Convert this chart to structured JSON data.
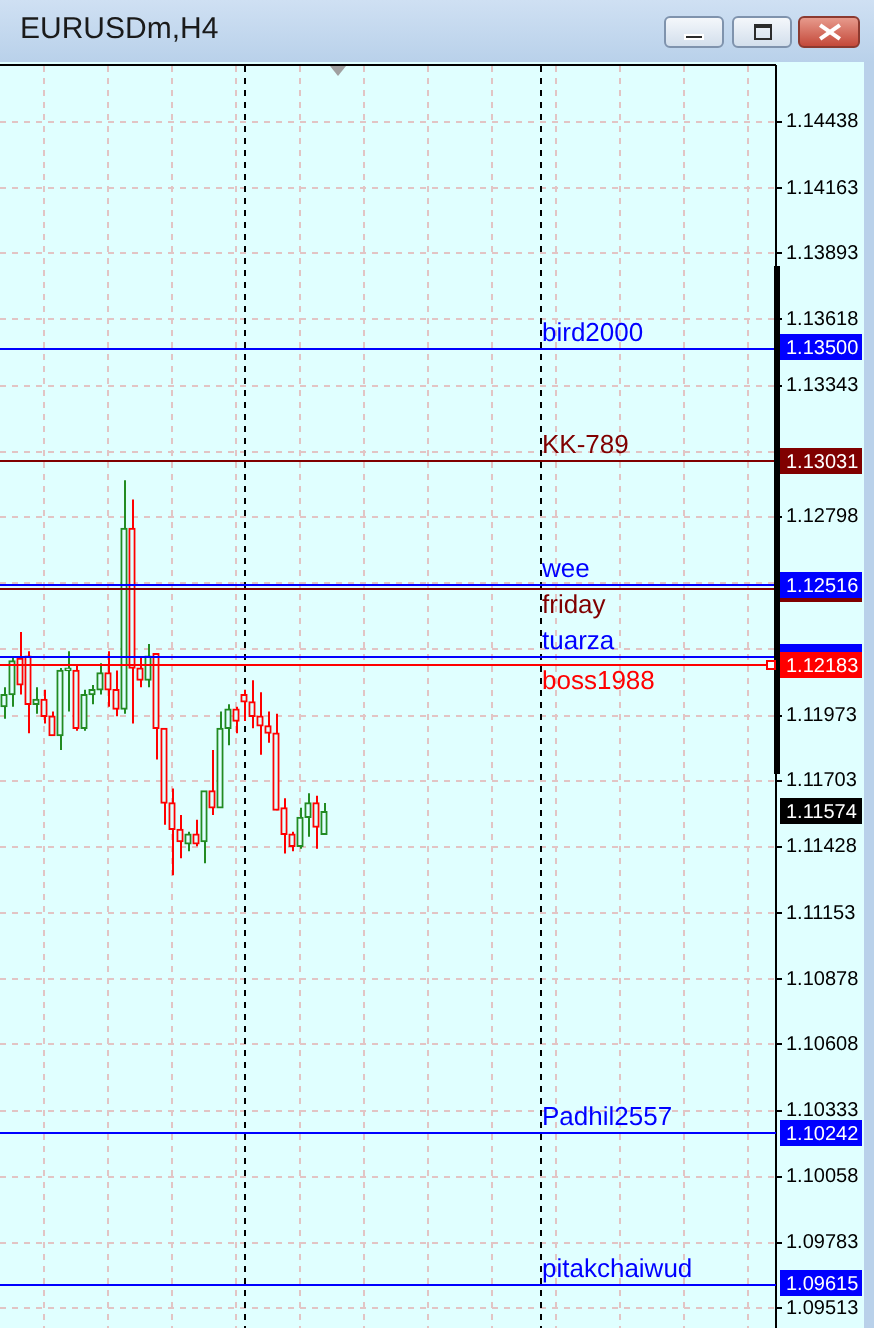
{
  "chart_data": {
    "type": "candlestick",
    "title": "EURUSDm,H4",
    "categories": [
      null,
      null,
      null,
      null,
      null,
      null,
      null,
      null,
      null,
      null,
      null,
      null,
      null,
      null,
      null,
      null,
      null,
      null,
      null,
      null,
      null,
      null,
      null,
      null,
      null,
      null,
      null,
      null,
      null,
      null,
      null,
      null,
      null,
      null,
      null,
      null,
      null,
      null,
      null,
      null,
      null,
      null,
      null,
      null,
      null,
      null,
      null,
      null,
      null,
      null,
      null,
      null,
      null,
      null,
      null,
      null,
      null,
      null,
      null,
      null,
      null,
      null,
      null,
      null,
      null,
      null,
      null,
      null,
      null,
      null,
      null,
      null,
      null,
      null,
      null,
      null,
      null,
      null,
      null,
      null,
      null,
      null,
      null,
      null,
      null,
      null,
      null,
      null,
      null,
      null,
      null,
      null,
      null,
      null,
      null,
      null,
      null
    ],
    "ohlc": [
      [
        1.1201,
        1.1209,
        1.1196,
        1.1206
      ],
      [
        1.1206,
        1.1222,
        1.1201,
        1.122
      ],
      [
        1.1221,
        1.1232,
        1.1206,
        1.121
      ],
      [
        1.1222,
        1.1224,
        1.119,
        1.1202
      ],
      [
        1.1202,
        1.1209,
        1.1198,
        1.1204
      ],
      [
        1.1204,
        1.1208,
        1.1194,
        1.1197
      ],
      [
        1.1197,
        1.1199,
        1.1189,
        1.1189
      ],
      [
        1.1189,
        1.1217,
        1.1183,
        1.1216
      ],
      [
        1.1216,
        1.1224,
        1.1199,
        1.1217
      ],
      [
        1.1216,
        1.1218,
        1.1191,
        1.1192
      ],
      [
        1.1192,
        1.1208,
        1.1191,
        1.1206
      ],
      [
        1.1206,
        1.121,
        1.1202,
        1.1208
      ],
      [
        1.1208,
        1.1219,
        1.1206,
        1.1215
      ],
      [
        1.1215,
        1.1224,
        1.1201,
        1.1208
      ],
      [
        1.1208,
        1.1216,
        1.1197,
        1.12
      ],
      [
        1.12,
        1.1295,
        1.1198,
        1.1275
      ],
      [
        1.1275,
        1.1287,
        1.1194,
        1.1217
      ],
      [
        1.1217,
        1.1222,
        1.1209,
        1.1212
      ],
      [
        1.1212,
        1.1227,
        1.1209,
        1.1222
      ],
      [
        1.1223,
        1.1223,
        1.1179,
        1.1192
      ],
      [
        1.1192,
        1.1192,
        1.1152,
        1.1161
      ],
      [
        1.1161,
        1.1167,
        1.1131,
        1.115
      ],
      [
        1.115,
        1.1156,
        1.1138,
        1.1145
      ],
      [
        1.1144,
        1.1149,
        1.1141,
        1.1148
      ],
      [
        1.1148,
        1.1154,
        1.1143,
        1.1144
      ],
      [
        1.1145,
        1.1166,
        1.1136,
        1.1166
      ],
      [
        1.1166,
        1.1183,
        1.1156,
        1.1159
      ],
      [
        1.1159,
        1.1199,
        1.1159,
        1.1192
      ],
      [
        1.1192,
        1.1202,
        1.1185,
        1.12
      ],
      [
        1.12,
        1.1201,
        1.119,
        1.1195
      ],
      [
        1.1206,
        1.1208,
        1.1195,
        1.1203
      ],
      [
        1.1203,
        1.1212,
        1.1192,
        1.1197
      ],
      [
        1.1197,
        1.1207,
        1.1181,
        1.1193
      ],
      [
        1.1193,
        1.1199,
        1.1186,
        1.119
      ],
      [
        1.119,
        1.1198,
        1.1158,
        1.1158
      ],
      [
        1.1159,
        1.1163,
        1.114,
        1.1148
      ],
      [
        1.1148,
        1.1149,
        1.1141,
        1.1143
      ],
      [
        1.1143,
        1.1159,
        1.1142,
        1.1155
      ],
      [
        1.1155,
        1.1165,
        1.1147,
        1.1161
      ],
      [
        1.1161,
        1.1164,
        1.1142,
        1.1151
      ],
      [
        1.1148,
        1.1161,
        1.1148,
        1.11574
      ],
      null,
      null,
      null,
      null,
      null,
      null,
      null,
      null,
      null,
      null,
      null,
      null,
      null,
      null,
      null,
      null,
      null,
      null,
      null,
      null,
      null,
      null,
      null,
      null,
      null,
      null,
      null,
      null,
      null,
      null,
      null,
      null,
      null,
      null,
      null,
      null,
      null,
      null,
      null,
      null,
      null,
      null,
      null,
      null,
      null,
      null,
      null,
      null,
      null,
      null,
      null,
      null,
      null,
      null,
      null,
      null
    ],
    "colors": [
      "#228b22",
      "#228b22",
      "#ff0000",
      "#ff0000",
      "#228b22",
      "#ff0000",
      "#ff0000",
      "#228b22",
      "#228b22",
      "#ff0000",
      "#228b22",
      "#228b22",
      "#228b22",
      "#ff0000",
      "#ff0000",
      "#228b22",
      "#ff0000",
      "#ff0000",
      "#228b22",
      "#ff0000",
      "#ff0000",
      "#ff0000",
      "#ff0000",
      "#228b22",
      "#ff0000",
      "#228b22",
      "#ff0000",
      "#228b22",
      "#228b22",
      "#ff0000",
      "#ff0000",
      "#ff0000",
      "#ff0000",
      "#ff0000",
      "#ff0000",
      "#ff0000",
      "#ff0000",
      "#228b22",
      "#228b22",
      "#ff0000",
      "#228b22",
      null,
      null,
      null,
      null,
      null,
      null,
      null,
      null,
      null,
      null,
      null,
      null,
      null,
      null,
      null,
      null,
      null,
      null,
      null,
      null,
      null,
      null,
      null,
      null,
      null,
      null,
      null,
      null,
      null,
      null,
      null,
      null,
      null,
      null,
      null,
      null,
      null,
      null,
      null,
      null,
      null,
      null,
      null,
      null,
      null,
      null,
      null,
      null,
      null,
      null,
      null,
      null,
      null,
      null,
      null,
      null
    ],
    "ylim": [
      1.0943,
      1.1467
    ],
    "yticks": [
      1.14438,
      1.14163,
      1.13893,
      1.13618,
      1.13343,
      {
        "value": 1.13068,
        "label": null
      },
      1.12798,
      {
        "value": 1.12523,
        "label": null
      },
      {
        "value": 1.12248,
        "label": null
      },
      1.11973,
      1.11703,
      1.11428,
      1.11153,
      1.10878,
      1.10608,
      1.10333,
      1.10058,
      1.09783,
      1.09513
    ],
    "grid": true,
    "tick_labels": "y",
    "ref_lines": [
      {
        "axis": "y",
        "value": 1.135,
        "label": "bird2000",
        "color": "#0000ff"
      },
      {
        "axis": "y",
        "value": 1.13031,
        "label": "KK-789",
        "color": "#800000"
      },
      {
        "axis": "y",
        "value": 1.125,
        "label": "friday",
        "color": "#800000"
      },
      {
        "axis": "y",
        "value": 1.12516,
        "label": "wee",
        "color": "#0000ff"
      },
      {
        "axis": "y",
        "value": 1.1222,
        "label": "tuarza",
        "color": "#0000ff"
      },
      {
        "axis": "y",
        "value": 1.12183,
        "label": "boss1988",
        "color": "#ff0000"
      },
      {
        "axis": "y",
        "value": 1.10242,
        "label": "Padhil2557",
        "color": "#0000ff"
      },
      {
        "axis": "y",
        "value": 1.09615,
        "label": "pitakchaiwud",
        "color": "#0000ff"
      }
    ],
    "annotations": [
      {
        "text": "1.13500",
        "y": 1.135
      },
      {
        "text": "1.13031",
        "y": 1.13031
      },
      {
        "text": "1.12516",
        "y": 1.12516
      },
      {
        "text": "1.12183",
        "y": 1.12183
      },
      {
        "text": "1.11574",
        "y": 1.11574
      },
      {
        "text": "1.10242",
        "y": 1.10242
      },
      {
        "text": "1.09615",
        "y": 1.09615
      }
    ]
  }
}
